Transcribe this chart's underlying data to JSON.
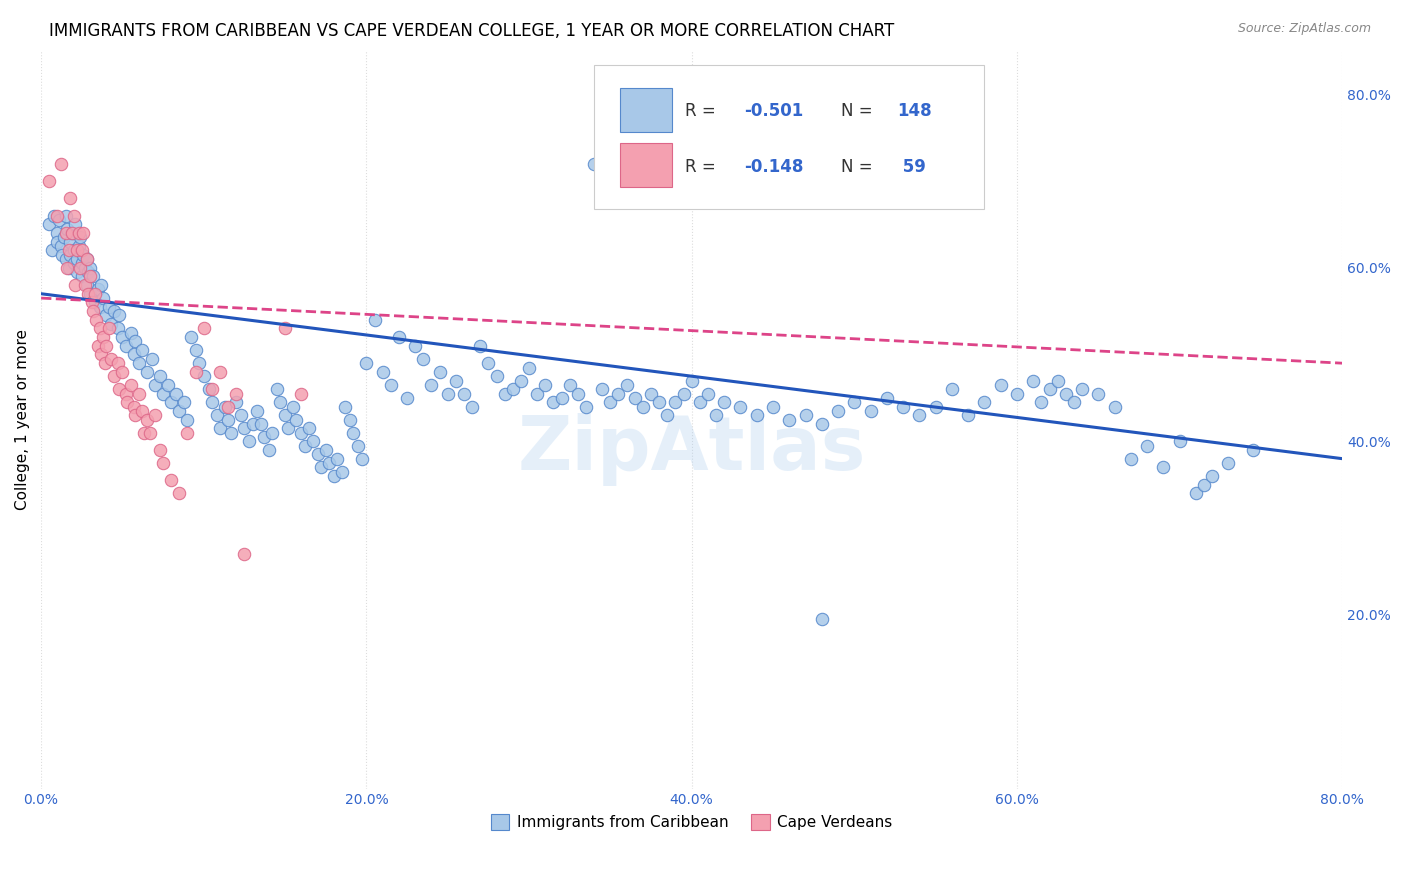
{
  "title": "IMMIGRANTS FROM CARIBBEAN VS CAPE VERDEAN COLLEGE, 1 YEAR OR MORE CORRELATION CHART",
  "source": "Source: ZipAtlas.com",
  "ylabel": "College, 1 year or more",
  "xlim": [
    0.0,
    0.8
  ],
  "ylim": [
    0.0,
    0.85
  ],
  "xtick_labels": [
    "0.0%",
    "20.0%",
    "40.0%",
    "60.0%",
    "80.0%"
  ],
  "xtick_vals": [
    0.0,
    0.2,
    0.4,
    0.6,
    0.8
  ],
  "ytick_labels_right": [
    "20.0%",
    "40.0%",
    "60.0%",
    "80.0%"
  ],
  "ytick_vals_right": [
    0.2,
    0.4,
    0.6,
    0.8
  ],
  "blue_color": "#a8c8e8",
  "blue_edge": "#5588cc",
  "pink_color": "#f4a0b0",
  "pink_edge": "#dd6688",
  "line_blue": "#2255bb",
  "line_pink": "#dd4488",
  "title_fontsize": 12,
  "axis_label_fontsize": 11,
  "tick_fontsize": 10,
  "background_color": "#ffffff",
  "grid_color": "#dddddd",
  "blue_scatter": [
    [
      0.005,
      0.65
    ],
    [
      0.007,
      0.62
    ],
    [
      0.008,
      0.66
    ],
    [
      0.01,
      0.64
    ],
    [
      0.01,
      0.63
    ],
    [
      0.011,
      0.655
    ],
    [
      0.012,
      0.625
    ],
    [
      0.013,
      0.615
    ],
    [
      0.014,
      0.635
    ],
    [
      0.015,
      0.61
    ],
    [
      0.015,
      0.66
    ],
    [
      0.016,
      0.645
    ],
    [
      0.017,
      0.6
    ],
    [
      0.018,
      0.63
    ],
    [
      0.018,
      0.615
    ],
    [
      0.019,
      0.64
    ],
    [
      0.02,
      0.62
    ],
    [
      0.02,
      0.605
    ],
    [
      0.021,
      0.65
    ],
    [
      0.022,
      0.61
    ],
    [
      0.022,
      0.595
    ],
    [
      0.023,
      0.625
    ],
    [
      0.024,
      0.635
    ],
    [
      0.025,
      0.605
    ],
    [
      0.025,
      0.59
    ],
    [
      0.026,
      0.615
    ],
    [
      0.027,
      0.6
    ],
    [
      0.028,
      0.58
    ],
    [
      0.028,
      0.61
    ],
    [
      0.029,
      0.595
    ],
    [
      0.03,
      0.57
    ],
    [
      0.03,
      0.6
    ],
    [
      0.032,
      0.59
    ],
    [
      0.033,
      0.56
    ],
    [
      0.035,
      0.575
    ],
    [
      0.036,
      0.555
    ],
    [
      0.037,
      0.58
    ],
    [
      0.038,
      0.565
    ],
    [
      0.04,
      0.545
    ],
    [
      0.042,
      0.555
    ],
    [
      0.043,
      0.535
    ],
    [
      0.045,
      0.55
    ],
    [
      0.047,
      0.53
    ],
    [
      0.048,
      0.545
    ],
    [
      0.05,
      0.52
    ],
    [
      0.052,
      0.51
    ],
    [
      0.055,
      0.525
    ],
    [
      0.057,
      0.5
    ],
    [
      0.058,
      0.515
    ],
    [
      0.06,
      0.49
    ],
    [
      0.062,
      0.505
    ],
    [
      0.065,
      0.48
    ],
    [
      0.068,
      0.495
    ],
    [
      0.07,
      0.465
    ],
    [
      0.073,
      0.475
    ],
    [
      0.075,
      0.455
    ],
    [
      0.078,
      0.465
    ],
    [
      0.08,
      0.445
    ],
    [
      0.083,
      0.455
    ],
    [
      0.085,
      0.435
    ],
    [
      0.088,
      0.445
    ],
    [
      0.09,
      0.425
    ],
    [
      0.092,
      0.52
    ],
    [
      0.095,
      0.505
    ],
    [
      0.097,
      0.49
    ],
    [
      0.1,
      0.475
    ],
    [
      0.103,
      0.46
    ],
    [
      0.105,
      0.445
    ],
    [
      0.108,
      0.43
    ],
    [
      0.11,
      0.415
    ],
    [
      0.113,
      0.44
    ],
    [
      0.115,
      0.425
    ],
    [
      0.117,
      0.41
    ],
    [
      0.12,
      0.445
    ],
    [
      0.123,
      0.43
    ],
    [
      0.125,
      0.415
    ],
    [
      0.128,
      0.4
    ],
    [
      0.13,
      0.42
    ],
    [
      0.133,
      0.435
    ],
    [
      0.135,
      0.42
    ],
    [
      0.137,
      0.405
    ],
    [
      0.14,
      0.39
    ],
    [
      0.142,
      0.41
    ],
    [
      0.145,
      0.46
    ],
    [
      0.147,
      0.445
    ],
    [
      0.15,
      0.43
    ],
    [
      0.152,
      0.415
    ],
    [
      0.155,
      0.44
    ],
    [
      0.157,
      0.425
    ],
    [
      0.16,
      0.41
    ],
    [
      0.162,
      0.395
    ],
    [
      0.165,
      0.415
    ],
    [
      0.167,
      0.4
    ],
    [
      0.17,
      0.385
    ],
    [
      0.172,
      0.37
    ],
    [
      0.175,
      0.39
    ],
    [
      0.177,
      0.375
    ],
    [
      0.18,
      0.36
    ],
    [
      0.182,
      0.38
    ],
    [
      0.185,
      0.365
    ],
    [
      0.187,
      0.44
    ],
    [
      0.19,
      0.425
    ],
    [
      0.192,
      0.41
    ],
    [
      0.195,
      0.395
    ],
    [
      0.197,
      0.38
    ],
    [
      0.2,
      0.49
    ],
    [
      0.205,
      0.54
    ],
    [
      0.21,
      0.48
    ],
    [
      0.215,
      0.465
    ],
    [
      0.22,
      0.52
    ],
    [
      0.225,
      0.45
    ],
    [
      0.23,
      0.51
    ],
    [
      0.235,
      0.495
    ],
    [
      0.24,
      0.465
    ],
    [
      0.245,
      0.48
    ],
    [
      0.25,
      0.455
    ],
    [
      0.255,
      0.47
    ],
    [
      0.26,
      0.455
    ],
    [
      0.265,
      0.44
    ],
    [
      0.27,
      0.51
    ],
    [
      0.275,
      0.49
    ],
    [
      0.28,
      0.475
    ],
    [
      0.285,
      0.455
    ],
    [
      0.29,
      0.46
    ],
    [
      0.295,
      0.47
    ],
    [
      0.3,
      0.485
    ],
    [
      0.305,
      0.455
    ],
    [
      0.31,
      0.465
    ],
    [
      0.315,
      0.445
    ],
    [
      0.32,
      0.45
    ],
    [
      0.325,
      0.465
    ],
    [
      0.33,
      0.455
    ],
    [
      0.335,
      0.44
    ],
    [
      0.34,
      0.72
    ],
    [
      0.345,
      0.46
    ],
    [
      0.35,
      0.445
    ],
    [
      0.355,
      0.455
    ],
    [
      0.36,
      0.465
    ],
    [
      0.365,
      0.45
    ],
    [
      0.37,
      0.44
    ],
    [
      0.375,
      0.455
    ],
    [
      0.38,
      0.445
    ],
    [
      0.385,
      0.43
    ],
    [
      0.39,
      0.445
    ],
    [
      0.395,
      0.455
    ],
    [
      0.4,
      0.47
    ],
    [
      0.405,
      0.445
    ],
    [
      0.41,
      0.455
    ],
    [
      0.415,
      0.43
    ],
    [
      0.42,
      0.445
    ],
    [
      0.43,
      0.44
    ],
    [
      0.44,
      0.43
    ],
    [
      0.45,
      0.44
    ],
    [
      0.46,
      0.425
    ],
    [
      0.47,
      0.43
    ],
    [
      0.48,
      0.42
    ],
    [
      0.49,
      0.435
    ],
    [
      0.5,
      0.445
    ],
    [
      0.51,
      0.435
    ],
    [
      0.52,
      0.45
    ],
    [
      0.53,
      0.44
    ],
    [
      0.54,
      0.43
    ],
    [
      0.55,
      0.44
    ],
    [
      0.56,
      0.46
    ],
    [
      0.57,
      0.43
    ],
    [
      0.58,
      0.445
    ],
    [
      0.59,
      0.465
    ],
    [
      0.6,
      0.455
    ],
    [
      0.61,
      0.47
    ],
    [
      0.615,
      0.445
    ],
    [
      0.62,
      0.46
    ],
    [
      0.625,
      0.47
    ],
    [
      0.63,
      0.455
    ],
    [
      0.635,
      0.445
    ],
    [
      0.64,
      0.46
    ],
    [
      0.65,
      0.455
    ],
    [
      0.66,
      0.44
    ],
    [
      0.67,
      0.38
    ],
    [
      0.68,
      0.395
    ],
    [
      0.69,
      0.37
    ],
    [
      0.7,
      0.4
    ],
    [
      0.71,
      0.34
    ],
    [
      0.715,
      0.35
    ],
    [
      0.72,
      0.36
    ],
    [
      0.73,
      0.375
    ],
    [
      0.745,
      0.39
    ],
    [
      0.48,
      0.195
    ]
  ],
  "pink_scatter": [
    [
      0.005,
      0.7
    ],
    [
      0.01,
      0.66
    ],
    [
      0.012,
      0.72
    ],
    [
      0.015,
      0.64
    ],
    [
      0.016,
      0.6
    ],
    [
      0.017,
      0.62
    ],
    [
      0.018,
      0.68
    ],
    [
      0.019,
      0.64
    ],
    [
      0.02,
      0.66
    ],
    [
      0.021,
      0.58
    ],
    [
      0.022,
      0.62
    ],
    [
      0.023,
      0.64
    ],
    [
      0.024,
      0.6
    ],
    [
      0.025,
      0.62
    ],
    [
      0.026,
      0.64
    ],
    [
      0.027,
      0.58
    ],
    [
      0.028,
      0.61
    ],
    [
      0.029,
      0.57
    ],
    [
      0.03,
      0.59
    ],
    [
      0.031,
      0.56
    ],
    [
      0.032,
      0.55
    ],
    [
      0.033,
      0.57
    ],
    [
      0.034,
      0.54
    ],
    [
      0.035,
      0.51
    ],
    [
      0.036,
      0.53
    ],
    [
      0.037,
      0.5
    ],
    [
      0.038,
      0.52
    ],
    [
      0.039,
      0.49
    ],
    [
      0.04,
      0.51
    ],
    [
      0.042,
      0.53
    ],
    [
      0.043,
      0.495
    ],
    [
      0.045,
      0.475
    ],
    [
      0.047,
      0.49
    ],
    [
      0.048,
      0.46
    ],
    [
      0.05,
      0.48
    ],
    [
      0.052,
      0.455
    ],
    [
      0.053,
      0.445
    ],
    [
      0.055,
      0.465
    ],
    [
      0.057,
      0.44
    ],
    [
      0.058,
      0.43
    ],
    [
      0.06,
      0.455
    ],
    [
      0.062,
      0.435
    ],
    [
      0.063,
      0.41
    ],
    [
      0.065,
      0.425
    ],
    [
      0.067,
      0.41
    ],
    [
      0.07,
      0.43
    ],
    [
      0.073,
      0.39
    ],
    [
      0.075,
      0.375
    ],
    [
      0.08,
      0.355
    ],
    [
      0.085,
      0.34
    ],
    [
      0.09,
      0.41
    ],
    [
      0.095,
      0.48
    ],
    [
      0.1,
      0.53
    ],
    [
      0.105,
      0.46
    ],
    [
      0.11,
      0.48
    ],
    [
      0.115,
      0.44
    ],
    [
      0.12,
      0.455
    ],
    [
      0.125,
      0.27
    ],
    [
      0.15,
      0.53
    ],
    [
      0.16,
      0.455
    ]
  ],
  "blue_line_x": [
    0.0,
    0.8
  ],
  "blue_line_y": [
    0.57,
    0.38
  ],
  "pink_line_x": [
    0.0,
    0.8
  ],
  "pink_line_y": [
    0.565,
    0.49
  ],
  "watermark": "ZipAtlas"
}
